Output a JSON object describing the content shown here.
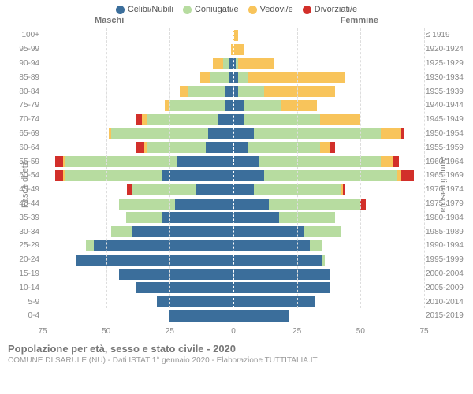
{
  "chart": {
    "type": "population-pyramid",
    "title": "Popolazione per età, sesso e stato civile - 2020",
    "subtitle": "COMUNE DI SARULE (NU) - Dati ISTAT 1° gennaio 2020 - Elaborazione TUTTITALIA.IT",
    "left_axis_label": "Fasce di età",
    "right_axis_label": "Anni di nascita",
    "left_header": "Maschi",
    "right_header": "Femmine",
    "x_max": 75,
    "x_ticks": [
      75,
      50,
      25,
      0,
      25,
      50,
      75
    ],
    "legend": [
      {
        "label": "Celibi/Nubili",
        "color": "#3b6e9b"
      },
      {
        "label": "Coniugati/e",
        "color": "#b7dca0"
      },
      {
        "label": "Vedovi/e",
        "color": "#f8c45b"
      },
      {
        "label": "Divorziati/e",
        "color": "#d22f2a"
      }
    ],
    "colors": {
      "single": "#3b6e9b",
      "married": "#b7dca0",
      "widowed": "#f8c45b",
      "divorced": "#d22f2a",
      "background": "#ffffff",
      "grid": "#dddddd",
      "text": "#888888"
    },
    "rows": [
      {
        "age": "100+",
        "birth": "≤ 1919",
        "m": {
          "s": 0,
          "c": 0,
          "w": 0,
          "d": 0
        },
        "f": {
          "s": 0,
          "c": 0,
          "w": 2,
          "d": 0
        }
      },
      {
        "age": "95-99",
        "birth": "1920-1924",
        "m": {
          "s": 0,
          "c": 0,
          "w": 1,
          "d": 0
        },
        "f": {
          "s": 0,
          "c": 0,
          "w": 4,
          "d": 0
        }
      },
      {
        "age": "90-94",
        "birth": "1925-1929",
        "m": {
          "s": 2,
          "c": 2,
          "w": 4,
          "d": 0
        },
        "f": {
          "s": 1,
          "c": 1,
          "w": 14,
          "d": 0
        }
      },
      {
        "age": "85-89",
        "birth": "1930-1934",
        "m": {
          "s": 2,
          "c": 7,
          "w": 4,
          "d": 0
        },
        "f": {
          "s": 2,
          "c": 4,
          "w": 38,
          "d": 0
        }
      },
      {
        "age": "80-84",
        "birth": "1935-1939",
        "m": {
          "s": 3,
          "c": 15,
          "w": 3,
          "d": 0
        },
        "f": {
          "s": 2,
          "c": 10,
          "w": 28,
          "d": 0
        }
      },
      {
        "age": "75-79",
        "birth": "1940-1944",
        "m": {
          "s": 3,
          "c": 22,
          "w": 2,
          "d": 0
        },
        "f": {
          "s": 4,
          "c": 15,
          "w": 14,
          "d": 0
        }
      },
      {
        "age": "70-74",
        "birth": "1945-1949",
        "m": {
          "s": 6,
          "c": 28,
          "w": 2,
          "d": 2
        },
        "f": {
          "s": 4,
          "c": 30,
          "w": 16,
          "d": 0
        }
      },
      {
        "age": "65-69",
        "birth": "1950-1954",
        "m": {
          "s": 10,
          "c": 38,
          "w": 1,
          "d": 0
        },
        "f": {
          "s": 8,
          "c": 50,
          "w": 8,
          "d": 1
        }
      },
      {
        "age": "60-64",
        "birth": "1955-1959",
        "m": {
          "s": 11,
          "c": 23,
          "w": 1,
          "d": 3
        },
        "f": {
          "s": 6,
          "c": 28,
          "w": 4,
          "d": 2
        }
      },
      {
        "age": "55-59",
        "birth": "1960-1964",
        "m": {
          "s": 22,
          "c": 44,
          "w": 1,
          "d": 3
        },
        "f": {
          "s": 10,
          "c": 48,
          "w": 5,
          "d": 2
        }
      },
      {
        "age": "50-54",
        "birth": "1965-1969",
        "m": {
          "s": 28,
          "c": 38,
          "w": 1,
          "d": 3
        },
        "f": {
          "s": 12,
          "c": 52,
          "w": 2,
          "d": 5
        }
      },
      {
        "age": "45-49",
        "birth": "1970-1974",
        "m": {
          "s": 15,
          "c": 25,
          "w": 0,
          "d": 2
        },
        "f": {
          "s": 8,
          "c": 34,
          "w": 1,
          "d": 1
        }
      },
      {
        "age": "40-44",
        "birth": "1975-1979",
        "m": {
          "s": 23,
          "c": 22,
          "w": 0,
          "d": 0
        },
        "f": {
          "s": 14,
          "c": 36,
          "w": 0,
          "d": 2
        }
      },
      {
        "age": "35-39",
        "birth": "1980-1984",
        "m": {
          "s": 28,
          "c": 14,
          "w": 0,
          "d": 0
        },
        "f": {
          "s": 18,
          "c": 22,
          "w": 0,
          "d": 0
        }
      },
      {
        "age": "30-34",
        "birth": "1985-1989",
        "m": {
          "s": 40,
          "c": 8,
          "w": 0,
          "d": 0
        },
        "f": {
          "s": 28,
          "c": 14,
          "w": 0,
          "d": 0
        }
      },
      {
        "age": "25-29",
        "birth": "1990-1994",
        "m": {
          "s": 55,
          "c": 3,
          "w": 0,
          "d": 0
        },
        "f": {
          "s": 30,
          "c": 5,
          "w": 0,
          "d": 0
        }
      },
      {
        "age": "20-24",
        "birth": "1995-1999",
        "m": {
          "s": 62,
          "c": 0,
          "w": 0,
          "d": 0
        },
        "f": {
          "s": 35,
          "c": 1,
          "w": 0,
          "d": 0
        }
      },
      {
        "age": "15-19",
        "birth": "2000-2004",
        "m": {
          "s": 45,
          "c": 0,
          "w": 0,
          "d": 0
        },
        "f": {
          "s": 38,
          "c": 0,
          "w": 0,
          "d": 0
        }
      },
      {
        "age": "10-14",
        "birth": "2005-2009",
        "m": {
          "s": 38,
          "c": 0,
          "w": 0,
          "d": 0
        },
        "f": {
          "s": 38,
          "c": 0,
          "w": 0,
          "d": 0
        }
      },
      {
        "age": "5-9",
        "birth": "2010-2014",
        "m": {
          "s": 30,
          "c": 0,
          "w": 0,
          "d": 0
        },
        "f": {
          "s": 32,
          "c": 0,
          "w": 0,
          "d": 0
        }
      },
      {
        "age": "0-4",
        "birth": "2015-2019",
        "m": {
          "s": 25,
          "c": 0,
          "w": 0,
          "d": 0
        },
        "f": {
          "s": 22,
          "c": 0,
          "w": 0,
          "d": 0
        }
      }
    ]
  }
}
